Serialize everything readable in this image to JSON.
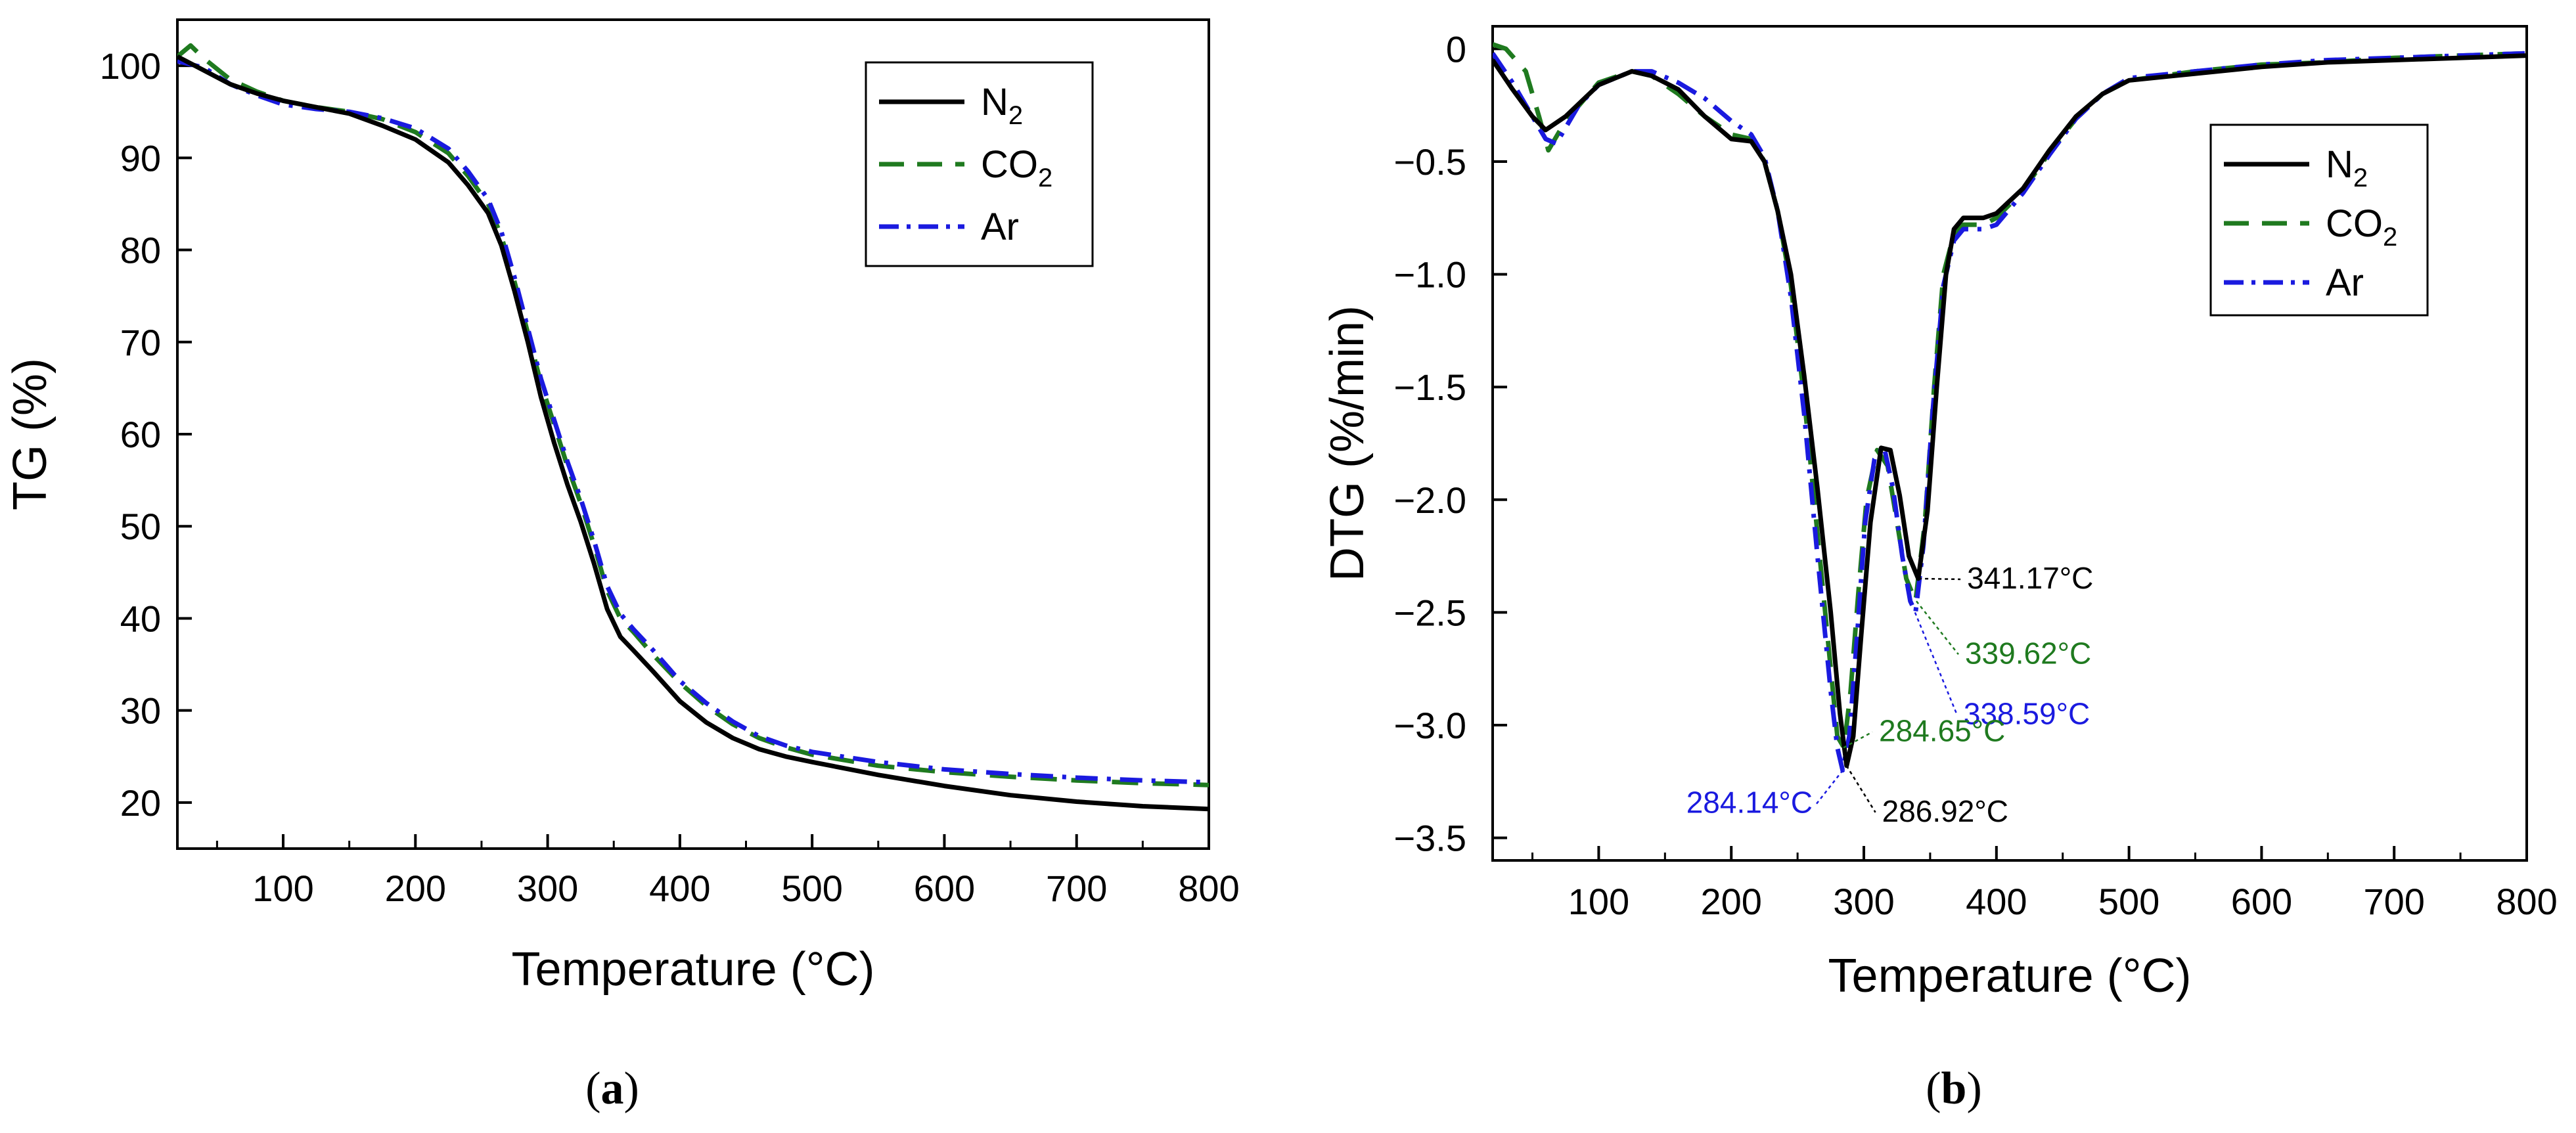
{
  "colors": {
    "N2": "#000000",
    "CO2": "#1f7a1f",
    "Ar": "#1a1adf",
    "axis": "#000000"
  },
  "chart_data": [
    {
      "id": "a",
      "type": "line",
      "caption": "(a)",
      "caption_parts": {
        "open": "(",
        "letter": "a",
        "close": ")"
      },
      "xlabel": "Temperature (°C)",
      "ylabel": "TG (%)",
      "xlim": [
        20,
        800
      ],
      "ylim": [
        15,
        105
      ],
      "xticks": [
        100,
        200,
        300,
        400,
        500,
        600,
        700,
        800
      ],
      "xtick_labels": [
        "100",
        "200",
        "300",
        "400",
        "500",
        "600",
        "700",
        "800"
      ],
      "yticks": [
        20,
        30,
        40,
        50,
        60,
        70,
        80,
        90,
        100
      ],
      "ytick_labels": [
        "20",
        "30",
        "40",
        "50",
        "60",
        "70",
        "80",
        "90",
        "100"
      ],
      "legend": {
        "position": "top-right",
        "entries": [
          {
            "base": "N",
            "sub": "2",
            "key": "N2"
          },
          {
            "base": "CO",
            "sub": "2",
            "key": "CO2"
          },
          {
            "base": "Ar",
            "sub": "",
            "key": "Ar"
          }
        ]
      },
      "series": [
        {
          "name": "N2",
          "key": "N2",
          "style": "solid",
          "x": [
            20,
            40,
            60,
            80,
            100,
            125,
            150,
            175,
            200,
            225,
            240,
            255,
            265,
            275,
            285,
            295,
            305,
            315,
            325,
            335,
            345,
            355,
            365,
            380,
            400,
            420,
            440,
            460,
            480,
            500,
            550,
            600,
            650,
            700,
            750,
            800
          ],
          "y": [
            101,
            99.5,
            98,
            97,
            96.2,
            95.5,
            94.8,
            93.5,
            92,
            89.5,
            87,
            84,
            80.5,
            75.5,
            70,
            64,
            59,
            54.5,
            50.5,
            46,
            41,
            38,
            36.5,
            34.2,
            31,
            28.7,
            27,
            25.8,
            25,
            24.4,
            23,
            21.8,
            20.8,
            20.1,
            19.6,
            19.3
          ]
        },
        {
          "name": "CO2",
          "key": "CO2",
          "style": "dashed",
          "x": [
            20,
            30,
            40,
            60,
            80,
            100,
            125,
            150,
            175,
            200,
            225,
            240,
            255,
            265,
            275,
            285,
            295,
            305,
            315,
            325,
            335,
            345,
            355,
            365,
            380,
            400,
            420,
            440,
            460,
            480,
            500,
            550,
            600,
            650,
            700,
            750,
            800
          ],
          "y": [
            101,
            102.2,
            100.8,
            98.5,
            97.2,
            96.2,
            95.5,
            95,
            94.2,
            92.8,
            90.5,
            88,
            85,
            81.5,
            76.5,
            71,
            65.5,
            61,
            56.5,
            52.5,
            48,
            43,
            40,
            38.5,
            36,
            33,
            30.5,
            28.5,
            27,
            26,
            25.2,
            24,
            23.3,
            22.8,
            22.4,
            22.1,
            21.9
          ]
        },
        {
          "name": "Ar",
          "key": "Ar",
          "style": "dashdot",
          "x": [
            20,
            40,
            60,
            80,
            100,
            125,
            150,
            175,
            200,
            225,
            240,
            255,
            265,
            275,
            285,
            295,
            305,
            315,
            325,
            335,
            345,
            355,
            365,
            380,
            400,
            420,
            440,
            460,
            480,
            500,
            550,
            600,
            650,
            700,
            750,
            800
          ],
          "y": [
            100.5,
            99.8,
            98,
            96.8,
            95.8,
            95.3,
            95,
            94.3,
            93.2,
            91,
            88.5,
            85.5,
            82,
            77,
            71.5,
            66,
            61.5,
            57,
            53,
            48.5,
            43.5,
            40.5,
            38.8,
            36.5,
            33.2,
            30.8,
            28.8,
            27.2,
            26.2,
            25.5,
            24.4,
            23.6,
            23.1,
            22.7,
            22.4,
            22.2
          ]
        }
      ]
    },
    {
      "id": "b",
      "type": "line",
      "caption": "(b)",
      "caption_parts": {
        "open": "(",
        "letter": "b",
        "close": ")"
      },
      "xlabel": "Temperature (°C)",
      "ylabel": "DTG (%/min)",
      "xlim": [
        20,
        800
      ],
      "ylim": [
        -3.6,
        0.1
      ],
      "xticks": [
        100,
        200,
        300,
        400,
        500,
        600,
        700,
        800
      ],
      "xtick_labels": [
        "100",
        "200",
        "300",
        "400",
        "500",
        "600",
        "700",
        "800"
      ],
      "yticks": [
        0,
        -0.5,
        -1.0,
        -1.5,
        -2.0,
        -2.5,
        -3.0,
        -3.5
      ],
      "ytick_labels": [
        "0",
        "−0.5",
        "−1.0",
        "−1.5",
        "−2.0",
        "−2.5",
        "−3.0",
        "−3.5"
      ],
      "legend": {
        "position": "top-right",
        "entries": [
          {
            "base": "N",
            "sub": "2",
            "key": "N2"
          },
          {
            "base": "CO",
            "sub": "2",
            "key": "CO2"
          },
          {
            "base": "Ar",
            "sub": "",
            "key": "Ar"
          }
        ]
      },
      "series": [
        {
          "name": "N2",
          "key": "N2",
          "style": "solid",
          "x": [
            20,
            35,
            50,
            60,
            75,
            100,
            125,
            140,
            160,
            180,
            200,
            215,
            225,
            235,
            245,
            255,
            265,
            275,
            282,
            287,
            292,
            298,
            305,
            313,
            320,
            327,
            334,
            341,
            348,
            355,
            362,
            368,
            375,
            390,
            400,
            420,
            440,
            460,
            480,
            500,
            550,
            600,
            650,
            700,
            750,
            800
          ],
          "y": [
            -0.05,
            -0.18,
            -0.3,
            -0.36,
            -0.3,
            -0.16,
            -0.1,
            -0.12,
            -0.18,
            -0.3,
            -0.4,
            -0.41,
            -0.5,
            -0.72,
            -1.0,
            -1.45,
            -1.95,
            -2.5,
            -2.95,
            -3.18,
            -3.05,
            -2.6,
            -2.1,
            -1.77,
            -1.78,
            -1.98,
            -2.25,
            -2.35,
            -2.05,
            -1.5,
            -1.0,
            -0.8,
            -0.75,
            -0.75,
            -0.73,
            -0.62,
            -0.45,
            -0.3,
            -0.2,
            -0.14,
            -0.11,
            -0.08,
            -0.06,
            -0.05,
            -0.04,
            -0.03
          ]
        },
        {
          "name": "CO2",
          "key": "CO2",
          "style": "dashed",
          "x": [
            20,
            30,
            45,
            55,
            62,
            75,
            100,
            125,
            140,
            160,
            180,
            200,
            215,
            225,
            235,
            245,
            255,
            265,
            275,
            280,
            285,
            290,
            296,
            302,
            310,
            318,
            325,
            332,
            339,
            346,
            353,
            360,
            368,
            375,
            390,
            400,
            420,
            440,
            460,
            480,
            500,
            550,
            600,
            650,
            700,
            750,
            800
          ],
          "y": [
            0.02,
            0,
            -0.1,
            -0.3,
            -0.45,
            -0.32,
            -0.15,
            -0.1,
            -0.12,
            -0.2,
            -0.3,
            -0.38,
            -0.4,
            -0.5,
            -0.72,
            -1.05,
            -1.55,
            -2.15,
            -2.75,
            -3.05,
            -3.1,
            -2.85,
            -2.4,
            -2.0,
            -1.78,
            -1.85,
            -2.1,
            -2.35,
            -2.45,
            -2.1,
            -1.5,
            -1.0,
            -0.82,
            -0.78,
            -0.78,
            -0.75,
            -0.63,
            -0.46,
            -0.31,
            -0.2,
            -0.14,
            -0.1,
            -0.07,
            -0.06,
            -0.04,
            -0.03,
            -0.02
          ]
        },
        {
          "name": "Ar",
          "key": "Ar",
          "style": "dashdot",
          "x": [
            20,
            35,
            50,
            60,
            68,
            75,
            85,
            100,
            125,
            140,
            160,
            180,
            200,
            215,
            225,
            235,
            245,
            255,
            265,
            275,
            280,
            284,
            289,
            295,
            301,
            308,
            315,
            322,
            329,
            335,
            339,
            345,
            352,
            360,
            368,
            375,
            390,
            400,
            420,
            440,
            460,
            480,
            500,
            550,
            600,
            650,
            700,
            750,
            800
          ],
          "y": [
            -0.02,
            -0.15,
            -0.3,
            -0.4,
            -0.42,
            -0.35,
            -0.25,
            -0.16,
            -0.1,
            -0.1,
            -0.15,
            -0.22,
            -0.32,
            -0.38,
            -0.48,
            -0.72,
            -1.1,
            -1.62,
            -2.25,
            -2.85,
            -3.1,
            -3.2,
            -3.05,
            -2.6,
            -2.1,
            -1.82,
            -1.76,
            -1.95,
            -2.25,
            -2.45,
            -2.5,
            -2.2,
            -1.6,
            -1.05,
            -0.85,
            -0.8,
            -0.8,
            -0.78,
            -0.64,
            -0.47,
            -0.31,
            -0.2,
            -0.13,
            -0.1,
            -0.07,
            -0.05,
            -0.04,
            -0.03,
            -0.02
          ]
        }
      ],
      "annotations": [
        {
          "text": "341.17°C",
          "key": "N2",
          "x": 341.17,
          "y": -2.35,
          "anchor": "right"
        },
        {
          "text": "339.62°C",
          "key": "CO2",
          "x": 339.62,
          "y": -2.45,
          "anchor": "right"
        },
        {
          "text": "338.59°C",
          "key": "Ar",
          "x": 338.59,
          "y": -2.5,
          "anchor": "right"
        },
        {
          "text": "284.65°C",
          "key": "CO2",
          "x": 284.65,
          "y": -3.1,
          "anchor": "right"
        },
        {
          "text": "286.92°C",
          "key": "N2",
          "x": 286.92,
          "y": -3.18,
          "anchor": "right"
        },
        {
          "text": "284.14°C",
          "key": "Ar",
          "x": 284.14,
          "y": -3.2,
          "anchor": "left"
        }
      ]
    }
  ]
}
